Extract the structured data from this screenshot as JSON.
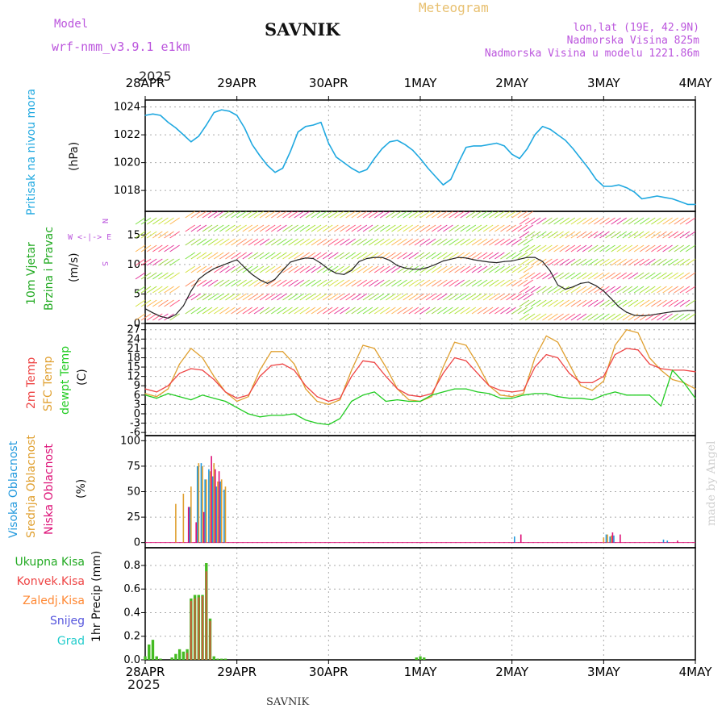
{
  "header": {
    "model_label": "Model",
    "model_name": "wrf-nmm_v3.9.1 e1km",
    "station": "SAVNIK",
    "meteogram_label": "Meteogram",
    "lonlat": "lon,lat (19E, 42.9N)",
    "altitude": "Nadmorska Visina 825m",
    "model_altitude": "Nadmorska Visina u modelu 1221.86m",
    "year_top": "2025",
    "year_bottom": "2025",
    "footer_station": "SAVNIK",
    "watermark": "made by Angel"
  },
  "colors": {
    "pressure": "#1fa8e0",
    "temp2m": "#ee4444",
    "sfctemp": "#e0a030",
    "dewpt": "#22cc22",
    "purple": "#bb55dd",
    "high_cloud": "#2299dd",
    "mid_cloud": "#e0a030",
    "low_cloud": "#dd1177",
    "total_precip": "#44bb22",
    "conv_precip": "#ee4444",
    "frz_precip": "#ff8833",
    "snow": "#5555dd",
    "hail": "#22cccc"
  },
  "chart_data": [
    {
      "id": "pressure",
      "type": "line",
      "ylabel_name": "Pritisak na nivou mora",
      "ylabel_unit": "(hPa)",
      "x_ticks": [
        "28APR",
        "29APR",
        "30APR",
        "1MAY",
        "2MAY",
        "3MAY",
        "4MAY"
      ],
      "xlim_hours": [
        0,
        144
      ],
      "ylim": [
        1016.5,
        1024.5
      ],
      "yticks": [
        1018,
        1020,
        1022,
        1024
      ],
      "grid": true,
      "series": [
        {
          "x_hours": [
            0,
            2,
            4,
            6,
            8,
            10,
            12,
            14,
            16,
            18,
            20,
            22,
            24,
            26,
            28,
            30,
            32,
            34,
            36,
            38,
            40,
            42,
            44,
            46,
            48,
            50,
            52,
            54,
            56,
            58,
            60,
            62,
            64,
            66,
            68,
            70,
            72,
            74,
            76,
            78,
            80,
            82,
            84,
            86,
            88,
            90,
            92,
            94,
            96,
            98,
            100,
            102,
            104,
            106,
            108,
            110,
            112,
            114,
            116,
            118,
            120,
            122,
            124,
            126,
            128,
            130,
            132,
            134,
            136,
            138,
            140,
            142,
            144
          ],
          "values": [
            1023.4,
            1023.5,
            1023.4,
            1022.9,
            1022.5,
            1022.0,
            1021.5,
            1021.9,
            1022.7,
            1023.6,
            1023.8,
            1023.7,
            1023.4,
            1022.5,
            1021.3,
            1020.5,
            1019.8,
            1019.3,
            1019.6,
            1020.8,
            1022.2,
            1022.6,
            1022.7,
            1022.9,
            1021.4,
            1020.4,
            1020.0,
            1019.6,
            1019.3,
            1019.5,
            1020.3,
            1021.0,
            1021.5,
            1021.6,
            1021.3,
            1020.9,
            1020.3,
            1019.6,
            1019.0,
            1018.4,
            1018.8,
            1020.0,
            1021.1,
            1021.2,
            1021.2,
            1021.3,
            1021.4,
            1021.2,
            1020.6,
            1020.3,
            1021.0,
            1022.0,
            1022.6,
            1022.4,
            1022.0,
            1021.6,
            1021.0,
            1020.3,
            1019.6,
            1018.8,
            1018.3,
            1018.3,
            1018.4,
            1018.2,
            1017.9,
            1017.4,
            1017.5,
            1017.6,
            1017.5,
            1017.4,
            1017.2,
            1017.0,
            1017.0
          ]
        }
      ]
    },
    {
      "id": "wind",
      "type": "line",
      "ylabel_name1": "10m Vjetar",
      "ylabel_name2": "Brzina i Pravac",
      "ylabel_unit": "(m/s)",
      "ylim": [
        0,
        19
      ],
      "yticks": [
        0,
        5,
        10,
        15
      ],
      "compass_top": "N",
      "compass_mid": "W <-|-> E",
      "compass_bot": "S",
      "grid": true,
      "series": [
        {
          "name": "speed",
          "x_hours": [
            0,
            2,
            4,
            6,
            8,
            10,
            12,
            14,
            16,
            18,
            20,
            22,
            24,
            26,
            28,
            30,
            32,
            34,
            36,
            38,
            40,
            42,
            44,
            46,
            48,
            50,
            52,
            54,
            56,
            58,
            60,
            62,
            64,
            66,
            68,
            70,
            72,
            74,
            76,
            78,
            80,
            82,
            84,
            86,
            88,
            90,
            92,
            94,
            96,
            98,
            100,
            102,
            104,
            106,
            108,
            110,
            112,
            114,
            116,
            118,
            120,
            122,
            124,
            126,
            128,
            130,
            132,
            134,
            136,
            138,
            140,
            142,
            144
          ],
          "values": [
            2.5,
            1.8,
            1.2,
            0.9,
            1.5,
            3.0,
            5.5,
            7.5,
            8.5,
            9.3,
            9.8,
            10.3,
            10.8,
            9.5,
            8.3,
            7.4,
            6.8,
            7.5,
            9.0,
            10.4,
            10.8,
            11.1,
            11.0,
            10.2,
            9.2,
            8.5,
            8.3,
            9.0,
            10.5,
            11.0,
            11.2,
            11.2,
            10.7,
            9.8,
            9.4,
            9.2,
            9.2,
            9.5,
            10.0,
            10.6,
            10.9,
            11.2,
            11.1,
            10.8,
            10.6,
            10.4,
            10.3,
            10.5,
            10.6,
            10.9,
            11.2,
            11.2,
            10.5,
            8.9,
            6.5,
            5.8,
            6.2,
            6.8,
            7.0,
            6.4,
            5.5,
            4.2,
            2.8,
            1.9,
            1.4,
            1.3,
            1.4,
            1.6,
            1.8,
            2.0,
            2.1,
            2.2,
            2.2
          ]
        }
      ]
    },
    {
      "id": "temperature",
      "type": "line",
      "ylabel_name1": "2m Temp",
      "ylabel_name2": "SFC Temp",
      "ylabel_name3": "dewpt Temp",
      "ylabel_unit": "(C)",
      "ylim": [
        -7,
        29
      ],
      "yticks": [
        -6,
        -3,
        0,
        3,
        6,
        9,
        12,
        15,
        18,
        21,
        24,
        27
      ],
      "grid": true,
      "series": [
        {
          "name": "2m Temp",
          "x_hours": [
            0,
            3,
            6,
            9,
            12,
            15,
            18,
            21,
            24,
            27,
            30,
            33,
            36,
            39,
            42,
            45,
            48,
            51,
            54,
            57,
            60,
            63,
            66,
            69,
            72,
            75,
            78,
            81,
            84,
            87,
            90,
            93,
            96,
            99,
            102,
            105,
            108,
            111,
            114,
            117,
            120,
            123,
            126,
            129,
            132,
            135,
            138,
            141,
            144
          ],
          "values": [
            8,
            7,
            9,
            13,
            14.5,
            14,
            11,
            7,
            5,
            6,
            12,
            15.5,
            16,
            14,
            9,
            5.5,
            4,
            5,
            12,
            17,
            16.5,
            12,
            8,
            6,
            5.5,
            6.5,
            13,
            18,
            17,
            13,
            9,
            7.5,
            7,
            7.5,
            15,
            19,
            18,
            13,
            10,
            10,
            12,
            19,
            21,
            20.5,
            16,
            14.5,
            14,
            14,
            13.5
          ]
        },
        {
          "name": "SFC Temp",
          "x_hours": [
            0,
            3,
            6,
            9,
            12,
            15,
            18,
            21,
            24,
            27,
            30,
            33,
            36,
            39,
            42,
            45,
            48,
            51,
            54,
            57,
            60,
            63,
            66,
            69,
            72,
            75,
            78,
            81,
            84,
            87,
            90,
            93,
            96,
            99,
            102,
            105,
            108,
            111,
            114,
            117,
            120,
            123,
            126,
            129,
            132,
            135,
            138,
            141,
            144
          ],
          "values": [
            6.5,
            5.5,
            8,
            16,
            21,
            18,
            12,
            7,
            4,
            5.5,
            14,
            20,
            20,
            16,
            8,
            4,
            3,
            4.5,
            14,
            22,
            21,
            15,
            8,
            4.5,
            4,
            5.5,
            15,
            23,
            22,
            16,
            9,
            6,
            5.5,
            6.5,
            18,
            25,
            23,
            16,
            9,
            7.5,
            10.5,
            22,
            27,
            26,
            18,
            14,
            11,
            10,
            8
          ]
        },
        {
          "name": "dewpt Temp",
          "x_hours": [
            0,
            3,
            6,
            9,
            12,
            15,
            18,
            21,
            24,
            27,
            30,
            33,
            36,
            39,
            42,
            45,
            48,
            51,
            54,
            57,
            60,
            63,
            66,
            69,
            72,
            75,
            78,
            81,
            84,
            87,
            90,
            93,
            96,
            99,
            102,
            105,
            108,
            111,
            114,
            117,
            120,
            123,
            126,
            129,
            132,
            135,
            138,
            141,
            144
          ],
          "values": [
            6,
            5,
            6.5,
            5.5,
            4.5,
            6,
            5,
            4,
            2,
            0,
            -1,
            -0.5,
            -0.5,
            0,
            -2,
            -3,
            -3.5,
            -1.5,
            4,
            6,
            7,
            4,
            4.5,
            4,
            4,
            6,
            7,
            8,
            8,
            7,
            6.5,
            5,
            5,
            6,
            6.5,
            6.5,
            5.5,
            5,
            5,
            4.5,
            6,
            7,
            6,
            6,
            6,
            2.5,
            14,
            10,
            5
          ]
        }
      ]
    },
    {
      "id": "cloud",
      "type": "bar",
      "ylabel_name1": "Visoka Oblacnost",
      "ylabel_name2": "Srednja Oblacnost",
      "ylabel_name3": "Niska Oblacnost",
      "ylabel_unit": "(%)",
      "ylim": [
        -5,
        105
      ],
      "yticks": [
        0,
        25,
        50,
        75,
        100
      ],
      "grid": true,
      "series": [
        {
          "name": "Visoka Oblacnost",
          "x_hours": [
            12,
            14,
            15,
            16,
            17,
            18,
            19,
            20,
            21,
            97,
            121,
            122,
            123,
            136,
            137
          ],
          "values": [
            35,
            75,
            78,
            62,
            72,
            65,
            55,
            60,
            52,
            6,
            8,
            6,
            7,
            3,
            2
          ]
        },
        {
          "name": "Srednja Oblacnost",
          "x_hours": [
            8,
            10,
            12,
            14,
            15,
            16,
            17,
            18,
            19,
            20,
            21,
            120,
            121,
            122
          ],
          "values": [
            38,
            48,
            55,
            78,
            75,
            62,
            70,
            78,
            60,
            62,
            55,
            5,
            8,
            7
          ]
        },
        {
          "name": "Niska Oblacnost",
          "x_hours": [
            11,
            13,
            15,
            17,
            18,
            19,
            98,
            122,
            124,
            139
          ],
          "values": [
            35,
            20,
            30,
            85,
            72,
            70,
            8,
            10,
            8,
            2
          ]
        }
      ]
    },
    {
      "id": "precip",
      "type": "bar",
      "ylabel_unit": "1hr Precip (mm)",
      "legend": [
        "Ukupna Kisa",
        "Konvek.Kisa",
        "Zaledj.Kisa",
        "Snijeg",
        "Grad"
      ],
      "ylim": [
        0,
        0.95
      ],
      "yticks": [
        0,
        0.2,
        0.4,
        0.6,
        0.8
      ],
      "grid": true,
      "series": [
        {
          "name": "Ukupna Kisa",
          "x_hours": [
            0,
            1,
            2,
            3,
            4,
            7,
            8,
            9,
            10,
            11,
            12,
            13,
            14,
            15,
            16,
            17,
            18,
            19,
            20,
            21,
            71,
            72,
            73
          ],
          "values": [
            0.03,
            0.13,
            0.17,
            0.03,
            0.01,
            0.02,
            0.05,
            0.09,
            0.07,
            0.09,
            0.52,
            0.55,
            0.55,
            0.55,
            0.82,
            0.35,
            0.03,
            0.01,
            0.01,
            0.01,
            0.02,
            0.03,
            0.02
          ]
        },
        {
          "name": "Konvek.Kisa",
          "x_hours": [
            11,
            12,
            13,
            14,
            15,
            16,
            17
          ],
          "values": [
            0.06,
            0.5,
            0.52,
            0.53,
            0.54,
            0.75,
            0.33
          ]
        }
      ]
    }
  ]
}
